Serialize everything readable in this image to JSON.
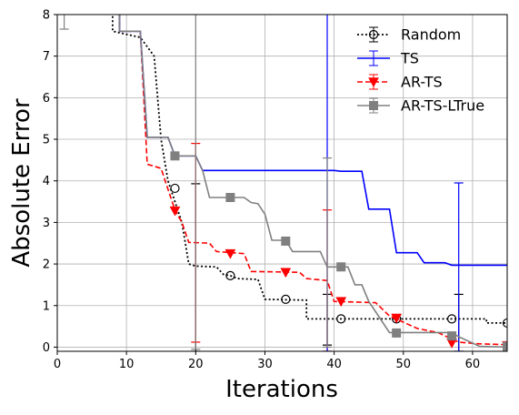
{
  "chart_data": {
    "type": "line",
    "xlabel": "Iterations",
    "ylabel": "Absolute Error",
    "xlim": [
      0,
      65
    ],
    "ylim": [
      -0.1,
      8
    ],
    "xticks": [
      0,
      10,
      20,
      30,
      40,
      50,
      60
    ],
    "yticks": [
      0,
      1,
      2,
      3,
      4,
      5,
      6,
      7,
      8
    ],
    "grid": true,
    "legend_position": "top-right",
    "series": [
      {
        "name": "Random",
        "color": "#000000",
        "style": "dotted",
        "marker": "circle-open",
        "points": [
          [
            0,
            8.5
          ],
          [
            8,
            8.5
          ],
          [
            8,
            7.6
          ],
          [
            12,
            7.45
          ],
          [
            14,
            7.0
          ],
          [
            15,
            5.0
          ],
          [
            16,
            4.0
          ],
          [
            17,
            3.5
          ],
          [
            18,
            3.0
          ],
          [
            19,
            2.0
          ],
          [
            20,
            1.95
          ],
          [
            23,
            1.93
          ],
          [
            24,
            1.75
          ],
          [
            25,
            1.72
          ],
          [
            26,
            1.65
          ],
          [
            29,
            1.63
          ],
          [
            30,
            1.15
          ],
          [
            36,
            1.13
          ],
          [
            36,
            0.68
          ],
          [
            62,
            0.68
          ],
          [
            62,
            0.58
          ],
          [
            65,
            0.58
          ]
        ],
        "markers": [
          [
            17,
            3.82
          ],
          [
            25,
            1.72
          ],
          [
            33,
            1.15
          ],
          [
            41,
            0.68
          ],
          [
            49,
            0.68
          ],
          [
            57,
            0.68
          ],
          [
            65,
            0.58
          ]
        ],
        "errorbars": [
          {
            "x": 20,
            "ylo": -0.1,
            "yhi": 3.93
          },
          {
            "x": 39,
            "ylo": 0.05,
            "yhi": 1.27
          },
          {
            "x": 58,
            "ylo": -0.1,
            "yhi": 1.27
          }
        ]
      },
      {
        "name": "TS",
        "color": "#0000ff",
        "style": "solid",
        "marker": "none",
        "points": [
          [
            0,
            8.5
          ],
          [
            9,
            8.5
          ],
          [
            9,
            7.6
          ],
          [
            12,
            7.6
          ],
          [
            13,
            5.05
          ],
          [
            16,
            5.05
          ],
          [
            17,
            4.6
          ],
          [
            20,
            4.6
          ],
          [
            21,
            4.25
          ],
          [
            40,
            4.25
          ],
          [
            41,
            4.23
          ],
          [
            44,
            4.23
          ],
          [
            45,
            3.32
          ],
          [
            48,
            3.32
          ],
          [
            49,
            2.27
          ],
          [
            52,
            2.27
          ],
          [
            53,
            2.03
          ],
          [
            56,
            2.03
          ],
          [
            57,
            1.97
          ],
          [
            65,
            1.97
          ]
        ],
        "markers": [],
        "errorbars": [
          {
            "x": 39,
            "ylo": -0.1,
            "yhi": 8.5
          },
          {
            "x": 58,
            "ylo": -0.1,
            "yhi": 3.95
          }
        ]
      },
      {
        "name": "AR-TS",
        "color": "#ff0000",
        "style": "dashed",
        "marker": "triangle-down",
        "points": [
          [
            0,
            8.5
          ],
          [
            9,
            8.5
          ],
          [
            9,
            7.6
          ],
          [
            12,
            7.6
          ],
          [
            13,
            4.4
          ],
          [
            15,
            4.3
          ],
          [
            16,
            3.8
          ],
          [
            17,
            3.3
          ],
          [
            18,
            3.0
          ],
          [
            19,
            2.52
          ],
          [
            22,
            2.5
          ],
          [
            23,
            2.3
          ],
          [
            27,
            2.25
          ],
          [
            28,
            1.82
          ],
          [
            35,
            1.8
          ],
          [
            36,
            1.65
          ],
          [
            39,
            1.6
          ],
          [
            40,
            1.1
          ],
          [
            46,
            1.07
          ],
          [
            48,
            0.75
          ],
          [
            50,
            0.6
          ],
          [
            52,
            0.45
          ],
          [
            55,
            0.35
          ],
          [
            58,
            0.12
          ],
          [
            61,
            0.08
          ],
          [
            65,
            0.06
          ]
        ],
        "markers": [
          [
            17,
            3.28
          ],
          [
            25,
            2.25
          ],
          [
            33,
            1.8
          ],
          [
            41,
            1.1
          ],
          [
            49,
            0.7
          ],
          [
            57,
            0.1
          ],
          [
            65,
            0.04
          ]
        ],
        "errorbars": [
          {
            "x": 20,
            "ylo": 0.12,
            "yhi": 4.9
          },
          {
            "x": 39,
            "ylo": -0.1,
            "yhi": 3.3
          }
        ]
      },
      {
        "name": "AR-TS-LTrue",
        "color": "#808080",
        "style": "solid",
        "marker": "square",
        "points": [
          [
            0,
            8.5
          ],
          [
            9,
            8.5
          ],
          [
            9,
            7.6
          ],
          [
            12,
            7.6
          ],
          [
            13,
            5.05
          ],
          [
            16,
            5.05
          ],
          [
            17,
            4.6
          ],
          [
            20,
            4.6
          ],
          [
            21,
            4.25
          ],
          [
            22,
            3.6
          ],
          [
            27,
            3.6
          ],
          [
            28,
            3.48
          ],
          [
            29,
            3.45
          ],
          [
            30,
            3.2
          ],
          [
            31,
            2.57
          ],
          [
            33,
            2.57
          ],
          [
            34,
            2.3
          ],
          [
            38,
            2.3
          ],
          [
            39,
            1.93
          ],
          [
            42,
            1.93
          ],
          [
            43,
            1.5
          ],
          [
            44,
            1.5
          ],
          [
            45,
            1.1
          ],
          [
            47,
            0.6
          ],
          [
            48,
            0.35
          ],
          [
            57,
            0.35
          ],
          [
            58,
            0.25
          ],
          [
            61,
            0.02
          ],
          [
            65,
            0.0
          ]
        ],
        "markers": [
          [
            17,
            4.6
          ],
          [
            25,
            3.6
          ],
          [
            33,
            2.55
          ],
          [
            41,
            1.93
          ],
          [
            49,
            0.34
          ],
          [
            57,
            0.27
          ],
          [
            65,
            0.02
          ]
        ],
        "errorbars": [
          {
            "x": 20,
            "ylo": -0.05,
            "yhi": 8.5
          },
          {
            "x": 39,
            "ylo": 0.0,
            "yhi": 4.55
          }
        ]
      }
    ],
    "top_stubs": {
      "x_left": 1,
      "y": 7.65
    }
  }
}
